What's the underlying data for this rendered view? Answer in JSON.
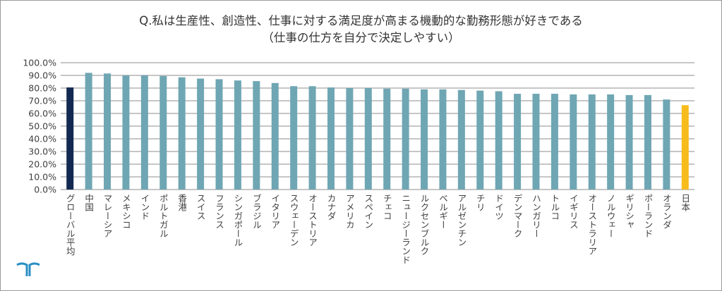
{
  "chart_data": {
    "type": "bar",
    "title": "Q.私は生産性、創造性、仕事に対する満足度が高まる機動的な勤務形態が好きである",
    "subtitle": "（仕事の仕方を自分で決定しやすい）",
    "xlabel": "",
    "ylabel": "",
    "ylim": [
      0,
      100
    ],
    "yticks": [
      "0.0%",
      "10.0%",
      "20.0%",
      "30.0%",
      "40.0%",
      "50.0%",
      "60.0%",
      "70.0%",
      "80.0%",
      "90.0%",
      "100.0%"
    ],
    "grid": true,
    "legend": "none",
    "categories": [
      "グローバル平均",
      "中国",
      "マレーシア",
      "メキシコ",
      "インド",
      "ポルトガル",
      "香港",
      "スイス",
      "フランス",
      "シンガポール",
      "ブラジル",
      "イタリア",
      "スウェーデン",
      "オーストリア",
      "カナダ",
      "アメリカ",
      "スペイン",
      "チェコ",
      "ニュージーランド",
      "ルクセンブルク",
      "ベルギー",
      "アルゼンチン",
      "チリ",
      "ドイツ",
      "デンマーク",
      "ハンガリー",
      "トルコ",
      "イギリス",
      "オーストラリア",
      "ノルウェー",
      "ギリシャ",
      "ポーランド",
      "オランダ",
      "日本"
    ],
    "values": [
      80.5,
      92,
      91.5,
      90,
      90,
      89.5,
      88.5,
      87.5,
      87,
      86,
      85.5,
      84,
      81.5,
      81.5,
      80.5,
      80,
      80,
      79.5,
      79.5,
      79,
      79,
      78.5,
      78,
      77.5,
      75.5,
      75.5,
      75.5,
      75,
      75,
      75,
      74.5,
      74.5,
      71,
      66.5
    ],
    "colors": {
      "default": "#6fa6b3",
      "global": "#132951",
      "japan": "#f7bb1c",
      "grid": "#8c8c8c",
      "axis_text": "#404040"
    }
  }
}
